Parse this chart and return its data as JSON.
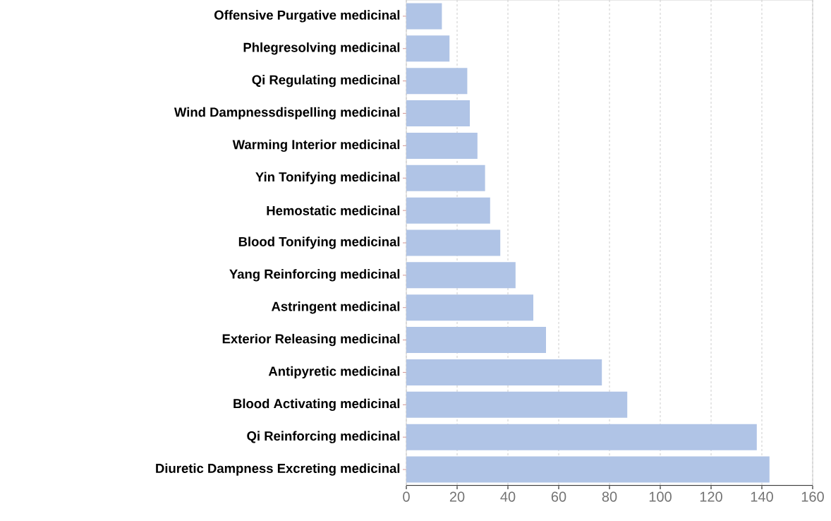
{
  "chart_data": {
    "type": "bar",
    "orientation": "horizontal",
    "categories": [
      "Offensive Purgative medicinal",
      "Phlegresolving medicinal",
      "Qi Regulating medicinal",
      "Wind Dampnessdispelling medicinal",
      "Warming Interior medicinal",
      "Yin Tonifying medicinal",
      "Hemostatic medicinal",
      "Blood Tonifying medicinal",
      "Yang Reinforcing medicinal",
      "Astringent medicinal",
      "Exterior Releasing medicinal",
      "Antipyretic medicinal",
      "Blood Activating medicinal",
      "Qi Reinforcing medicinal",
      "Diuretic Dampness Excreting medicinal"
    ],
    "values": [
      14,
      17,
      24,
      25,
      28,
      31,
      33,
      37,
      43,
      50,
      55,
      77,
      87,
      138,
      143
    ],
    "color": "#b0c4e6",
    "xlim": [
      0,
      160
    ],
    "xticks": [
      0,
      20,
      40,
      60,
      80,
      100,
      120,
      140,
      160
    ],
    "grid": "x"
  }
}
